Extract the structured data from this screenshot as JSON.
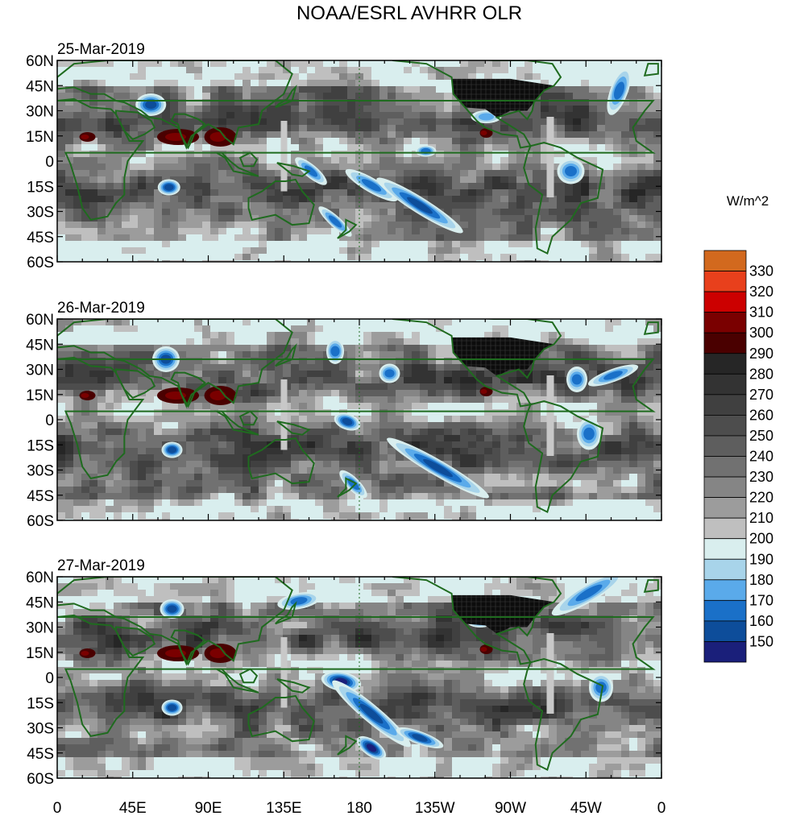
{
  "title": "NOAA/ESRL AVHRR OLR",
  "panels": [
    {
      "date": "25-Mar-2019"
    },
    {
      "date": "26-Mar-2019"
    },
    {
      "date": "27-Mar-2019"
    }
  ],
  "lat_ticks": [
    "60N",
    "45N",
    "30N",
    "15N",
    "0",
    "15S",
    "30S",
    "45S",
    "60S"
  ],
  "lon_ticks": [
    "0",
    "45E",
    "90E",
    "135E",
    "180",
    "135W",
    "90W",
    "45W",
    "0"
  ],
  "colorbar": {
    "units": "W/m^2",
    "levels": [
      "330",
      "320",
      "310",
      "300",
      "290",
      "280",
      "270",
      "260",
      "250",
      "240",
      "230",
      "220",
      "210",
      "200",
      "190",
      "180",
      "170",
      "160",
      "150"
    ],
    "colors": [
      "#d2691e",
      "#e8401c",
      "#cc0000",
      "#7a0000",
      "#4a0000",
      "#262626",
      "#333333",
      "#404040",
      "#4d4d4d",
      "#5e5e5e",
      "#717171",
      "#858585",
      "#9c9c9c",
      "#bfbfbf",
      "#d9eeee",
      "#a8d4ea",
      "#5aaaea",
      "#1a70c8",
      "#0d4d9a",
      "#1a1f7a"
    ]
  },
  "map_colors": {
    "land_outline": "#1f6b1f",
    "usa_fill": "#101010",
    "missing": "#c8c8c8"
  }
}
